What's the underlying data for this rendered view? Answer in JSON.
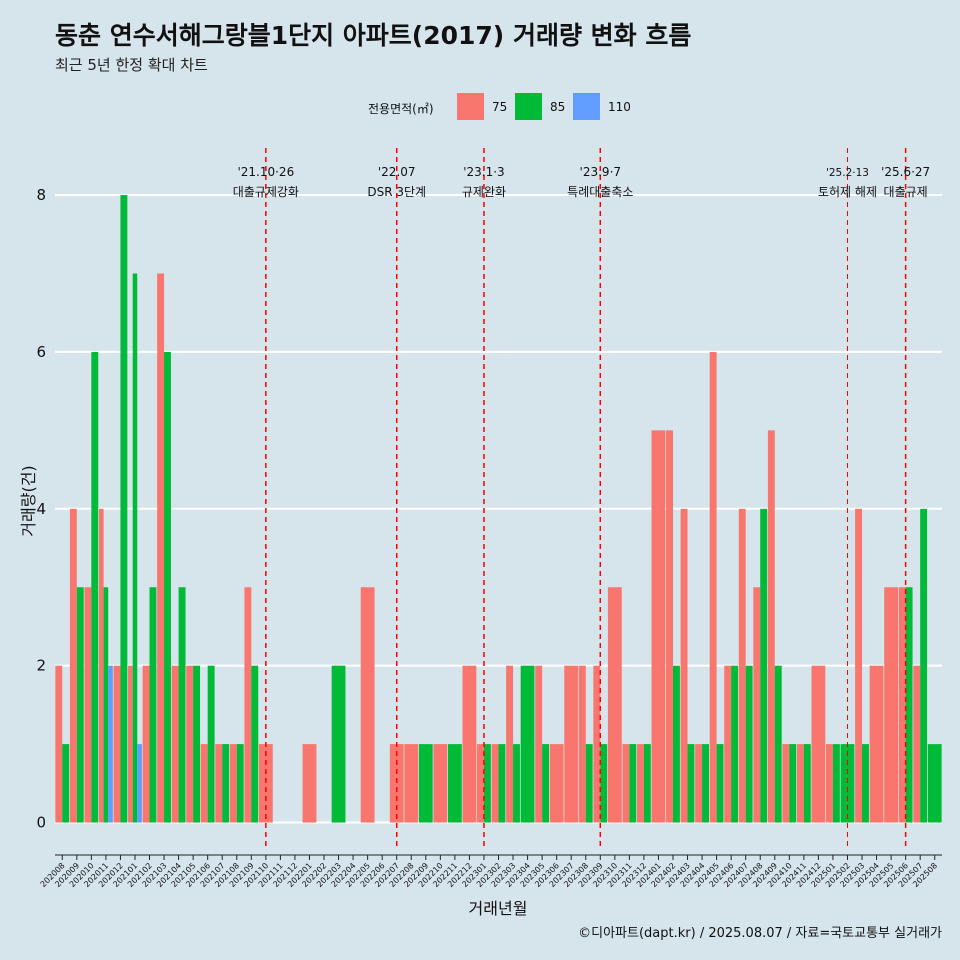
{
  "header": {
    "title": "동춘 연수서해그랑블1단지 아파트(2017) 거래량 변화 흐름",
    "subtitle": "최근 5년 한정 확대 차트"
  },
  "legend": {
    "title": "전용면적(㎡)",
    "items": [
      {
        "label": "75",
        "color": "#f8766d"
      },
      {
        "label": "85",
        "color": "#00ba38"
      },
      {
        "label": "110",
        "color": "#619cff"
      }
    ]
  },
  "caption": "©디아파트(dapt.kr) / 2025.08.07 / 자료=국토교통부 실거래가",
  "chart_data": {
    "type": "bar",
    "title": "동춘 연수서해그랑블1단지 아파트(2017) 거래량 변화 흐름",
    "xlabel": "거래년월",
    "ylabel": "거래량(건)",
    "ylim": [
      -0.35,
      8.6
    ],
    "yticks": [
      0,
      2,
      4,
      6,
      8
    ],
    "grid": true,
    "legend_position": "top",
    "categories": [
      "202008",
      "202009",
      "202010",
      "202011",
      "202012",
      "202101",
      "202102",
      "202103",
      "202104",
      "202105",
      "202106",
      "202107",
      "202108",
      "202109",
      "202110",
      "202111",
      "202112",
      "202201",
      "202202",
      "202203",
      "202204",
      "202205",
      "202206",
      "202207",
      "202208",
      "202209",
      "202210",
      "202211",
      "202212",
      "202301",
      "202302",
      "202303",
      "202304",
      "202305",
      "202306",
      "202307",
      "202308",
      "202309",
      "202310",
      "202311",
      "202312",
      "202401",
      "202402",
      "202403",
      "202404",
      "202405",
      "202406",
      "202407",
      "202408",
      "202409",
      "202410",
      "202411",
      "202412",
      "202501",
      "202502",
      "202503",
      "202504",
      "202505",
      "202506",
      "202507",
      "202508"
    ],
    "tick_labels": [
      "202008",
      "202009",
      "202010",
      "202011",
      "202012",
      "202101",
      "202102",
      "202103",
      "202104",
      "202105",
      "202106",
      "202107",
      "202108",
      "202109",
      "202110",
      "202111",
      "202112",
      "202201",
      "202202",
      "202203",
      "202204",
      "202205",
      "202206",
      "202207",
      "202208",
      "202209",
      "202210",
      "202211",
      "202212",
      "202301",
      "202302",
      "202303",
      "202304",
      "202305",
      "202306",
      "202307",
      "202308",
      "202309",
      "202310",
      "202311",
      "202312",
      "202401",
      "202402",
      "202403",
      "202404",
      "202405",
      "202406",
      "202407",
      "202408",
      "202409",
      "202410",
      "202411",
      "202412",
      "202501",
      "202502",
      "202503",
      "202504",
      "202505",
      "202506",
      "202507",
      "202508"
    ],
    "series": [
      {
        "name": "75",
        "color": "#f8766d",
        "values": [
          2,
          4,
          3,
          4,
          2,
          2,
          2,
          7,
          2,
          2,
          1,
          1,
          1,
          3,
          1,
          0,
          0,
          1,
          0,
          0,
          0,
          3,
          0,
          1,
          1,
          0,
          1,
          0,
          2,
          1,
          1,
          2,
          0,
          2,
          1,
          2,
          2,
          2,
          3,
          1,
          1,
          5,
          5,
          4,
          1,
          6,
          2,
          4,
          3,
          5,
          1,
          1,
          2,
          1,
          0,
          4,
          2,
          3,
          3,
          2,
          0
        ]
      },
      {
        "name": "85",
        "color": "#00ba38",
        "values": [
          1,
          3,
          6,
          3,
          8,
          7,
          3,
          6,
          3,
          2,
          2,
          1,
          1,
          2,
          0,
          0,
          0,
          0,
          0,
          2,
          0,
          0,
          0,
          0,
          0,
          1,
          0,
          1,
          0,
          1,
          1,
          1,
          2,
          1,
          0,
          0,
          1,
          1,
          0,
          1,
          1,
          0,
          2,
          1,
          1,
          1,
          2,
          2,
          4,
          2,
          1,
          1,
          0,
          1,
          1,
          1,
          0,
          0,
          3,
          4,
          1
        ]
      },
      {
        "name": "110",
        "color": "#619cff",
        "values": [
          0,
          0,
          0,
          2,
          0,
          1,
          0,
          0,
          0,
          0,
          0,
          0,
          0,
          0,
          0,
          0,
          0,
          0,
          0,
          0,
          0,
          0,
          0,
          0,
          0,
          0,
          0,
          0,
          0,
          0,
          0,
          0,
          0,
          0,
          0,
          0,
          0,
          0,
          0,
          0,
          0,
          0,
          0,
          0,
          0,
          0,
          0,
          0,
          0,
          0,
          0,
          0,
          0,
          0,
          0,
          0,
          0,
          0,
          0,
          0,
          0
        ]
      }
    ],
    "annotations": [
      {
        "at": "202110",
        "date": "'21.10·26",
        "label": "대출규제강화"
      },
      {
        "at": "202207",
        "date": "'22.07",
        "label": "DSR 3단계"
      },
      {
        "at": "202301",
        "date": "'23.1·3",
        "label": "규제완화"
      },
      {
        "at": "202309",
        "date": "'23.9·7",
        "label": "특례대출축소"
      },
      {
        "at": "202502",
        "date": "'25.2·13",
        "label": "토허제 해제"
      },
      {
        "at": "202506",
        "date": "'25.6·27",
        "label": "대출규제"
      }
    ]
  }
}
